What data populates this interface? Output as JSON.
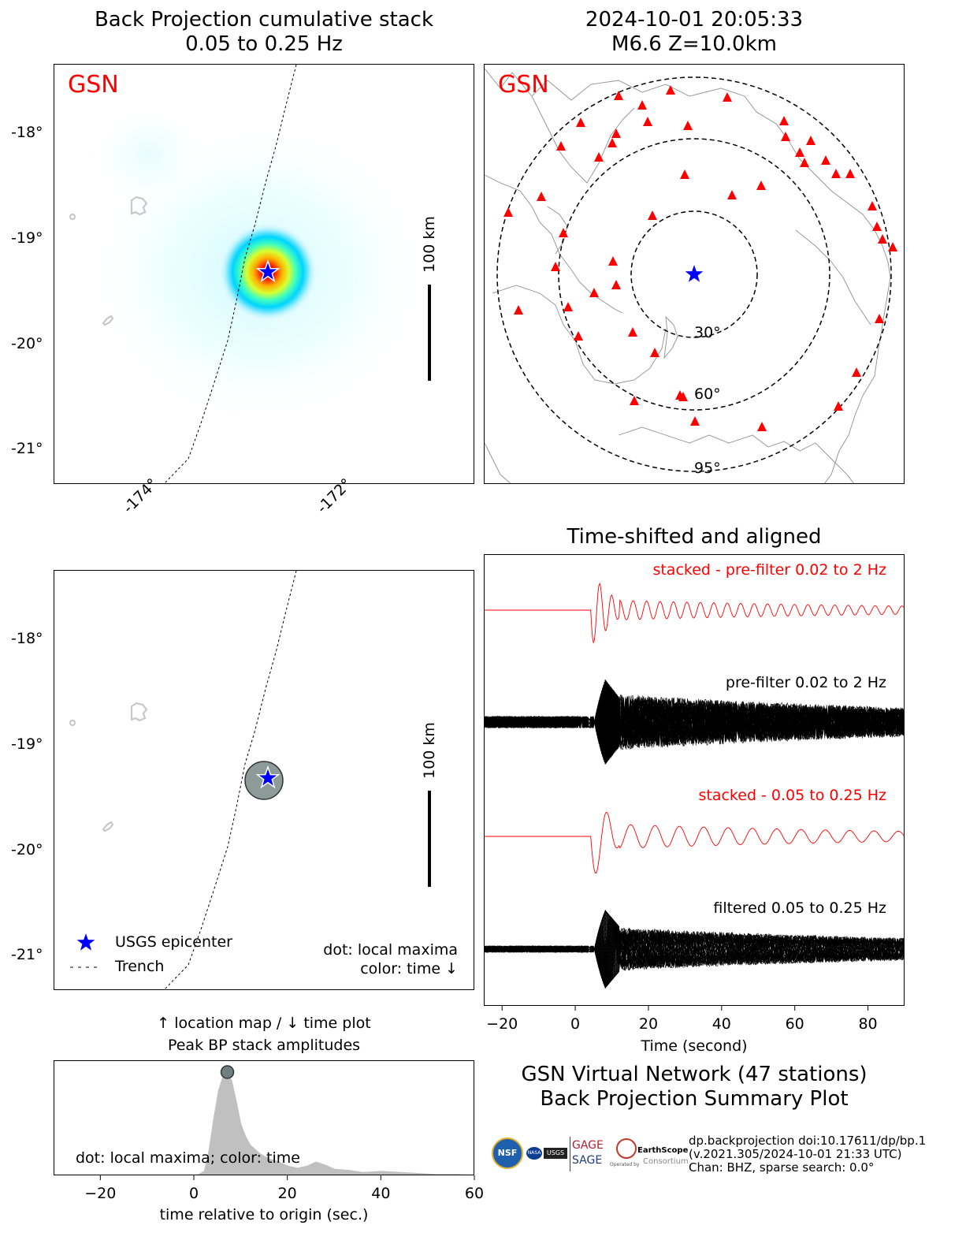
{
  "figure": {
    "bp_title_line1": "Back Projection cumulative stack",
    "bp_title_line2": "0.05 to 0.25 Hz",
    "event_title_line1": "2024-10-01 20:05:33",
    "event_title_line2": "M6.6 Z=10.0km",
    "network_label": "GSN",
    "lat_ticks": [
      "-18°",
      "-19°",
      "-20°",
      "-21°"
    ],
    "lon_ticks": [
      "-174°",
      "-172°"
    ],
    "scale_label": "100 km",
    "legend_epicenter": "USGS epicenter",
    "legend_trench": "Trench",
    "note_dot": "dot: local maxima",
    "note_color": "color: time ↓",
    "peak_title_line1": "↑ location map / ↓ time plot",
    "peak_title_line2": "Peak BP stack amplitudes",
    "peak_note": "dot: local maxima; color: time",
    "summary_line1": "GSN Virtual Network (47 stations)",
    "summary_line2": "Back Projection Summary Plot",
    "footer_line1": "dp.backprojection doi:10.17611/dp/bp.1",
    "footer_line2": "(v.2021.305/2024-10-01 21:33 UTC)",
    "footer_line3": "Chan: BHZ, sparse search: 0.0°",
    "logo_gage": "GAGE",
    "logo_sage": "SAGE",
    "logo_nsf": "NSF",
    "logo_nasa": "NASA",
    "logo_usgs": "USGS",
    "logo_earthscope": "EarthScope",
    "logo_consortium": "Consortium",
    "logo_operated": "Operated by"
  },
  "chart_data": [
    {
      "type": "heatmap",
      "title": "Back Projection cumulative stack 0.05 to 0.25 Hz",
      "xlim": [
        -175.0,
        -171.0
      ],
      "ylim": [
        -21.35,
        -17.4
      ],
      "lon_ticks": [
        -174,
        -172
      ],
      "lat_ticks": [
        -18,
        -19,
        -20,
        -21
      ],
      "peak": {
        "lon": -172.97,
        "lat": -19.35
      },
      "epicenter": {
        "lon": -172.97,
        "lat": -19.35
      },
      "colors": {
        "epicenter": "#0000ff",
        "heat_high": "#b20000",
        "heat_low": "#e6ffff"
      }
    },
    {
      "type": "scatter",
      "title": "2024-10-01 20:05:33 M6.6 Z=10.0km",
      "distance_rings_deg": [
        30,
        60,
        95
      ],
      "station_count": 47,
      "colors": {
        "station": "#ff0000",
        "epicenter": "#0000ff"
      }
    },
    {
      "type": "scatter",
      "xlim": [
        -175.0,
        -171.0
      ],
      "ylim": [
        -21.35,
        -17.4
      ],
      "lat_ticks": [
        -18,
        -19,
        -20,
        -21
      ],
      "local_maxima": [
        {
          "lon": -172.97,
          "lat": -19.36
        }
      ],
      "colors": {
        "dot": "#8c9a9a"
      }
    },
    {
      "type": "line",
      "title": "Time-shifted and aligned",
      "xlabel": "Time (second)",
      "xlim": [
        -25,
        90
      ],
      "xticks": [
        -20,
        0,
        20,
        40,
        60,
        80
      ],
      "series": [
        {
          "name": "stacked - pre-filter 0.02 to 2 Hz",
          "color": "#ff0000"
        },
        {
          "name": "pre-filter 0.02 to 2 Hz",
          "color": "#000000"
        },
        {
          "name": "stacked - 0.05 to 0.25 Hz",
          "color": "#ff0000"
        },
        {
          "name": "filtered 0.05 to 0.25 Hz",
          "color": "#000000"
        }
      ]
    },
    {
      "type": "area",
      "xlabel": "time relative to origin (sec.)",
      "xlim": [
        -30,
        60
      ],
      "xticks": [
        -20,
        0,
        20,
        40,
        60
      ],
      "x": [
        0,
        2,
        3,
        4,
        5,
        6,
        7,
        8,
        9,
        10,
        11,
        12,
        14,
        16,
        18,
        20,
        22,
        24,
        26,
        28,
        30,
        33,
        36,
        40,
        44,
        48,
        52,
        56,
        60
      ],
      "values": [
        0.0,
        0.05,
        0.25,
        0.55,
        0.82,
        0.96,
        1.0,
        0.92,
        0.72,
        0.5,
        0.38,
        0.3,
        0.22,
        0.17,
        0.14,
        0.1,
        0.08,
        0.1,
        0.14,
        0.11,
        0.07,
        0.06,
        0.04,
        0.05,
        0.04,
        0.03,
        0.02,
        0.02,
        0.01
      ],
      "peak_dot": {
        "x": 7,
        "y": 1.0
      },
      "colors": {
        "fill": "#c0c0c0",
        "dot": "#708080"
      }
    }
  ]
}
